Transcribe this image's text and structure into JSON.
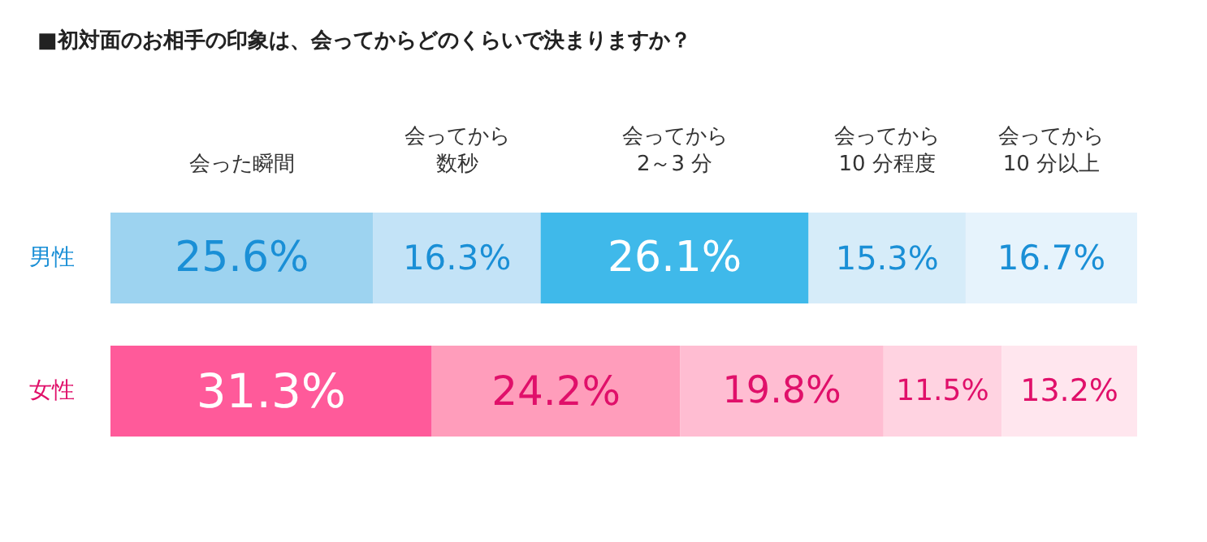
{
  "chart_data": {
    "type": "bar",
    "title": "■初対面のお相手の印象は、会ってからどのくらいで決まりますか？",
    "orientation": "horizontal",
    "stacked": true,
    "legend": false,
    "tick_labels": "y",
    "xlim": [
      0,
      100
    ],
    "categories": [
      "男性",
      "女性"
    ],
    "series": [
      {
        "name": "会った瞬間",
        "colors": [
          "#9dd3f0",
          "#ff5a9a"
        ],
        "values": [
          25.6,
          31.3
        ],
        "value_labels": [
          "25.6%",
          "31.3%"
        ]
      },
      {
        "name": "会ってから数秒",
        "colors": [
          "#c3e3f7",
          "#ff9dbb"
        ],
        "values": [
          16.3,
          24.2
        ],
        "value_labels": [
          "16.3%",
          "24.2%"
        ]
      },
      {
        "name": "会ってから2～3 分",
        "colors": [
          "#3fb9ea",
          "#ffbdd2"
        ],
        "values": [
          26.1,
          19.8
        ],
        "value_labels": [
          "26.1%",
          "19.8%"
        ]
      },
      {
        "name": "会ってから10 分程度",
        "colors": [
          "#d6ecf9",
          "#ffd3e1"
        ],
        "values": [
          15.3,
          11.5
        ],
        "value_labels": [
          "15.3%",
          "11.5%"
        ]
      },
      {
        "name": "会ってから10 分以上",
        "colors": [
          "#e6f3fc",
          "#ffe6ee"
        ],
        "values": [
          16.7,
          13.2
        ],
        "value_labels": [
          "16.7%",
          "13.2%"
        ]
      }
    ]
  }
}
